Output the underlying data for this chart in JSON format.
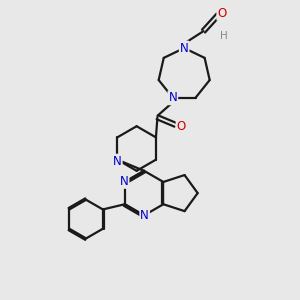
{
  "bg_color": "#e8e8e8",
  "bond_color": "#1a1a1a",
  "N_color": "#0000cc",
  "O_color": "#cc0000",
  "H_color": "#888888",
  "line_width": 1.6,
  "figsize": [
    3.0,
    3.0
  ],
  "dpi": 100,
  "xlim": [
    0,
    10
  ],
  "ylim": [
    0,
    10
  ]
}
